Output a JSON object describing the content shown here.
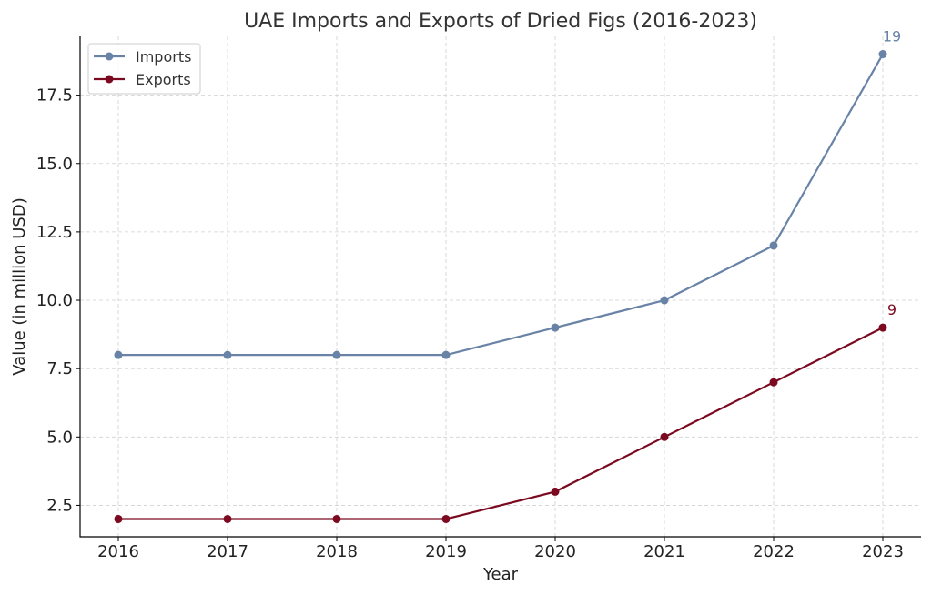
{
  "chart_data": {
    "type": "line",
    "title": "UAE Imports and Exports of Dried Figs (2016-2023)",
    "xlabel": "Year",
    "ylabel": "Value (in million USD)",
    "categories": [
      "2016",
      "2017",
      "2018",
      "2019",
      "2020",
      "2021",
      "2022",
      "2023"
    ],
    "yticks": [
      "2.5",
      "5.0",
      "7.5",
      "10.0",
      "12.5",
      "15.0",
      "17.5"
    ],
    "ylim": [
      1.35,
      19.65
    ],
    "grid": true,
    "legend_position": "top-left",
    "series": [
      {
        "name": "Imports",
        "color": "#6883a6",
        "values": [
          8,
          8,
          8,
          8,
          9,
          10,
          12,
          19
        ],
        "end_label": "19"
      },
      {
        "name": "Exports",
        "color": "#7b0a20",
        "values": [
          2,
          2,
          2,
          2,
          3,
          5,
          7,
          9
        ],
        "end_label": "9"
      }
    ]
  }
}
